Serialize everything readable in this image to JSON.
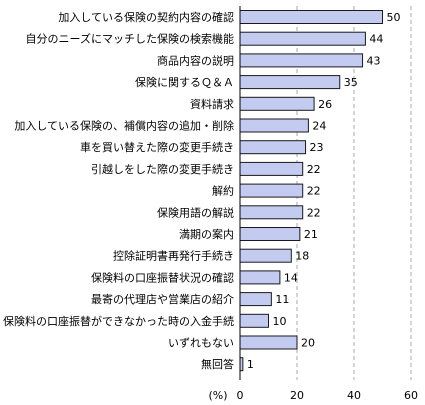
{
  "chart_data": {
    "type": "bar",
    "orientation": "horizontal",
    "categories": [
      "加入している保険の契約内容の確認",
      "自分のニーズにマッチした保険の検索機能",
      "商品内容の説明",
      "保険に関するＱ＆Ａ",
      "資料請求",
      "加入している保険の、補償内容の追加・削除",
      "車を買い替えた際の変更手続き",
      "引越しをした際の変更手続き",
      "解約",
      "保険用語の解説",
      "満期の案内",
      "控除証明書再発行手続き",
      "保険料の口座振替状況の確認",
      "最寄の代理店や営業店の紹介",
      "保険料の口座振替ができなかった時の入金手続",
      "いずれもない",
      "無回答"
    ],
    "values": [
      50,
      44,
      43,
      35,
      26,
      24,
      23,
      22,
      22,
      22,
      21,
      18,
      14,
      11,
      10,
      20,
      1
    ],
    "xlim": [
      0,
      60
    ],
    "xticks": [
      0,
      20,
      40,
      60
    ],
    "xticks_text": [
      "0",
      "20",
      "40",
      "60"
    ],
    "unit_label": "(%)",
    "grid": true,
    "bar_color": "#c3cbf0",
    "bar_edge_color": "#1a1a1a",
    "grid_color": "#aaaaaa"
  }
}
